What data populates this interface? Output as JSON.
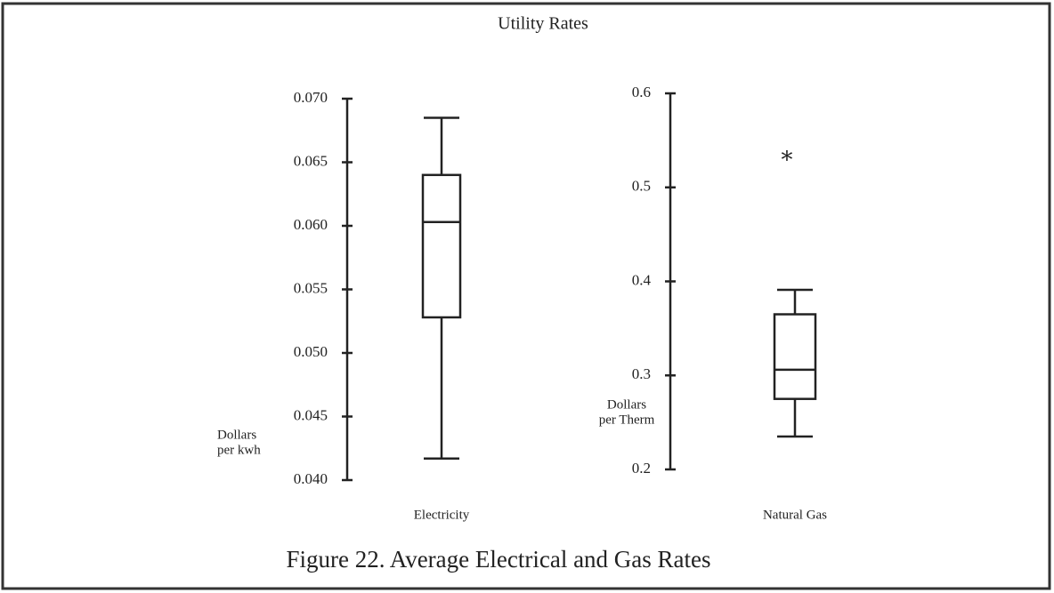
{
  "title": "Utility Rates",
  "caption": "Figure 22.  Average Electrical and Gas Rates",
  "chart_data": [
    {
      "type": "box",
      "categories": [
        "Electricity"
      ],
      "ylabel": [
        "Dollars",
        "per kwh"
      ],
      "ylim": [
        0.04,
        0.07
      ],
      "yticks": [
        {
          "value": 0.04,
          "label": "0.040"
        },
        0.045,
        {
          "value": 0.05,
          "label": "0.050"
        },
        0.055,
        {
          "value": 0.06,
          "label": "0.060"
        },
        0.065,
        {
          "value": 0.07,
          "label": "0.070"
        }
      ],
      "min": 0.0417,
      "q1": 0.0528,
      "median": 0.0603,
      "q3": 0.064,
      "max": 0.0685,
      "outliers": [],
      "color": "#222222"
    },
    {
      "type": "box",
      "categories": [
        "Natural Gas"
      ],
      "ylabel": [
        "Dollars",
        "per Therm"
      ],
      "ylim": [
        0.2,
        0.6
      ],
      "yticks": [
        0.2,
        0.3,
        0.4,
        0.5,
        0.6
      ],
      "min": 0.235,
      "q1": 0.275,
      "median": 0.306,
      "q3": 0.365,
      "max": 0.391,
      "outliers": [
        0.532
      ],
      "color": "#222222"
    }
  ]
}
